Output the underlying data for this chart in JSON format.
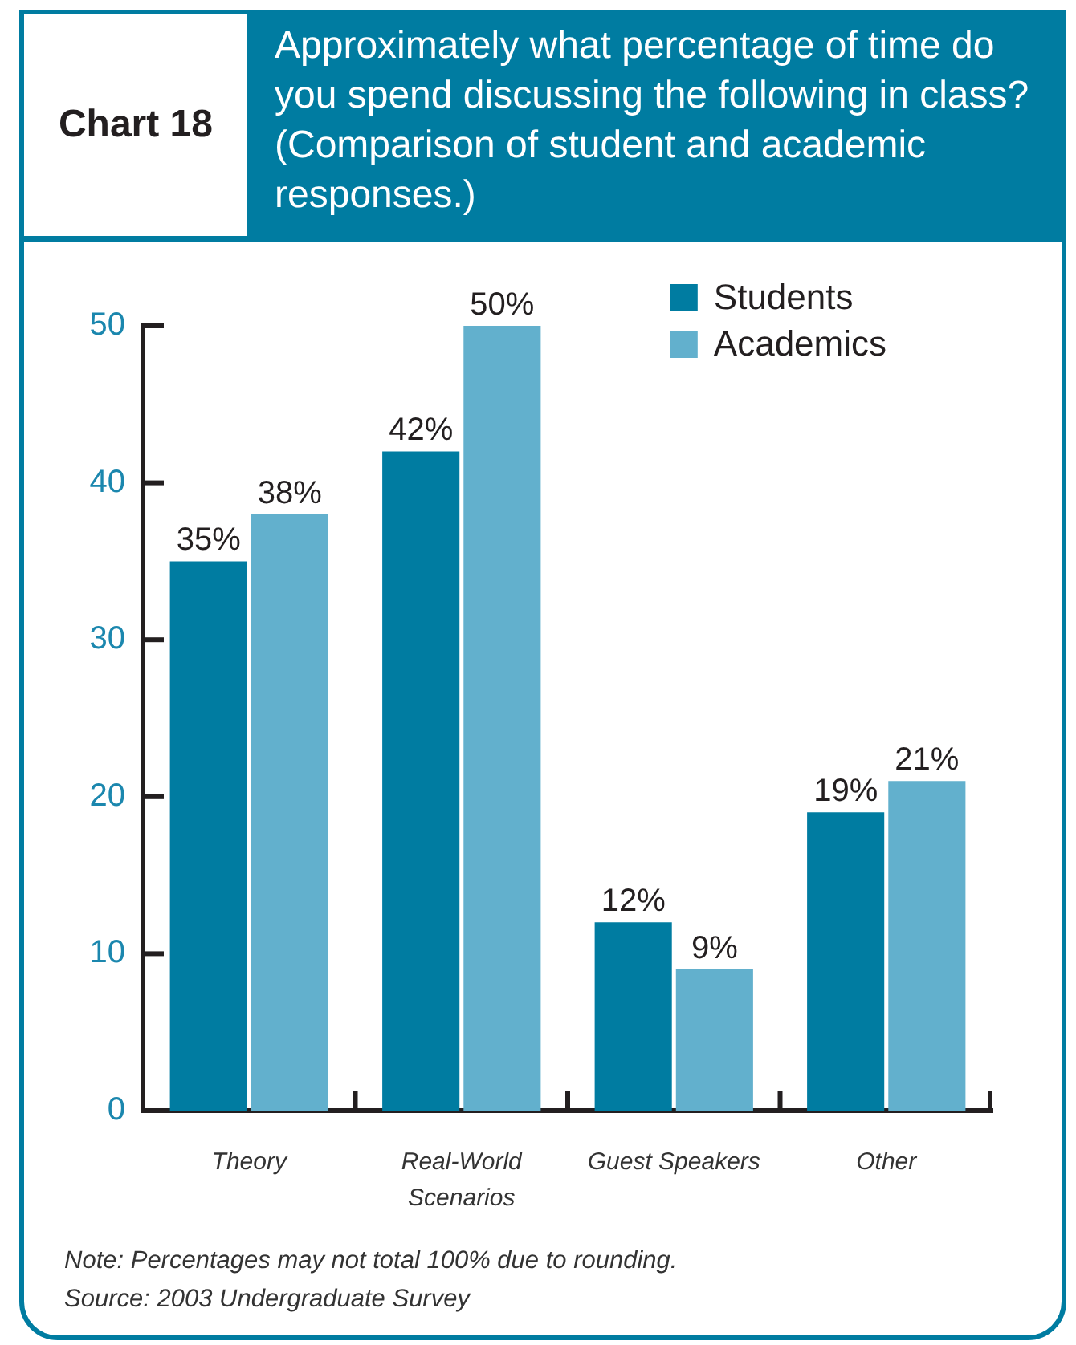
{
  "chart_data": {
    "type": "bar",
    "title": "Chart 18",
    "subtitle": "Approximately what percentage of time do you spend discussing the following in class? (Comparison of student and academic responses.)",
    "categories": [
      "Theory",
      "Real-World Scenarios",
      "Guest Speakers",
      "Other"
    ],
    "series": [
      {
        "name": "Students",
        "color": "#007ca1",
        "values": [
          35,
          42,
          12,
          19
        ],
        "value_labels": [
          "35%",
          "42%",
          "12%",
          "19%"
        ]
      },
      {
        "name": "Academics",
        "color": "#62b0cd",
        "values": [
          38,
          50,
          9,
          21
        ],
        "value_labels": [
          "38%",
          "50%",
          "9%",
          "21%"
        ]
      }
    ],
    "ylim": [
      0,
      50
    ],
    "yticks": [
      0,
      10,
      20,
      30,
      40,
      50
    ],
    "legend": "top right",
    "annotations": [
      "Note: Percentages may not total 100% due to rounding.",
      "Source: 2003 Undergraduate Survey"
    ]
  }
}
